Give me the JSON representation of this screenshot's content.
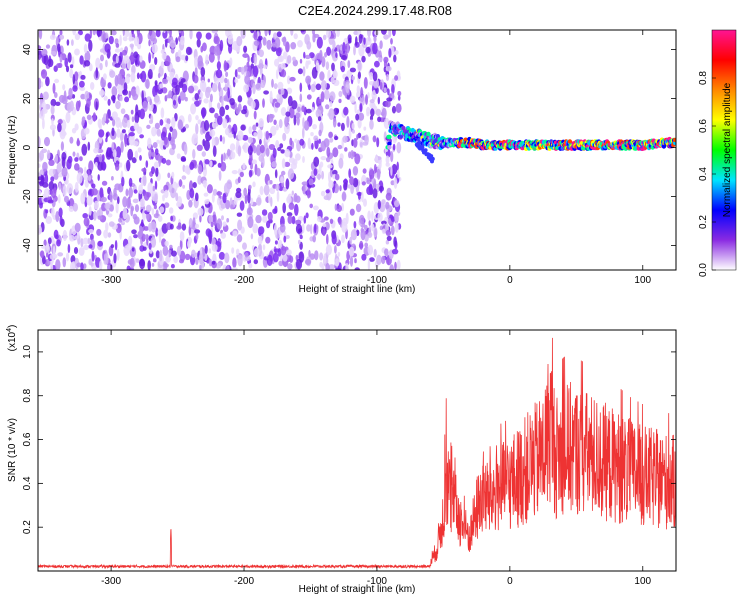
{
  "title": "C2E4.2024.299.17.48.R08",
  "colors": {
    "spectrogram_noise": "#7b2cf0",
    "snr_line": "#ee3333",
    "axis": "#000000"
  },
  "chart_data": [
    {
      "type": "heatmap",
      "name": "spectrogram",
      "xlabel": "Height of straight line (km)",
      "ylabel": "Frequency (Hz)",
      "xlim": [
        -355,
        125
      ],
      "ylim": [
        -50,
        48
      ],
      "xticks": [
        -300,
        -200,
        -100,
        0,
        100
      ],
      "yticks": [
        -40,
        -20,
        0,
        20,
        40
      ],
      "grid": false,
      "noise_region_x": [
        -355,
        -83
      ],
      "signal_track": {
        "x": [
          -90,
          -80,
          -70,
          -60,
          -50,
          -40,
          -30,
          -20,
          -10,
          0,
          20,
          40,
          60,
          80,
          100,
          120
        ],
        "y": [
          8,
          6,
          5,
          3,
          2,
          2,
          2,
          1,
          1,
          1,
          1,
          1,
          1,
          1,
          1,
          2
        ]
      },
      "colorbar": {
        "label": "Normalized spectral amplitude",
        "range": [
          0,
          1
        ],
        "ticks": [
          "0.0",
          "0.2",
          "0.4",
          "0.6",
          "0.8"
        ],
        "tick_values": [
          0.0,
          0.2,
          0.4,
          0.6,
          0.8
        ],
        "colors": [
          "#ffffff",
          "#8a2be2",
          "#0000ff",
          "#00e5ff",
          "#00ff00",
          "#ffff00",
          "#ff8800",
          "#ff0000",
          "#ff1493"
        ]
      }
    },
    {
      "type": "line",
      "name": "snr",
      "xlabel": "Height of straight line (km)",
      "ylabel": "SNR (10 * v/v)",
      "y_multiplier": "(x10",
      "y_multiplier_exp": "4",
      "y_multiplier_close": ")",
      "xlim": [
        -355,
        125
      ],
      "ylim": [
        0,
        1.1
      ],
      "xticks": [
        -300,
        -200,
        -100,
        0,
        100
      ],
      "yticks": [
        "0.2",
        "0.4",
        "0.6",
        "0.8",
        "1.0"
      ],
      "ytick_values": [
        0.2,
        0.4,
        0.6,
        0.8,
        1.0
      ],
      "grid": false,
      "series": [
        {
          "x": [
            -355,
            -300,
            -256,
            -255,
            -254,
            -200,
            -100,
            -60,
            -55,
            -50,
            -48,
            -45,
            -42,
            -40,
            -38,
            -35,
            -30,
            -25,
            -20,
            -15,
            -10,
            -5,
            0,
            5,
            10,
            15,
            20,
            25,
            28,
            30,
            32,
            35,
            40,
            45,
            50,
            60,
            70,
            80,
            90,
            100,
            110,
            125
          ],
          "y": [
            0.02,
            0.02,
            0.02,
            0.21,
            0.02,
            0.02,
            0.02,
            0.03,
            0.1,
            0.25,
            0.45,
            0.34,
            0.3,
            0.28,
            0.24,
            0.2,
            0.16,
            0.28,
            0.36,
            0.32,
            0.38,
            0.38,
            0.4,
            0.42,
            0.45,
            0.48,
            0.5,
            0.53,
            0.6,
            0.7,
            0.6,
            0.52,
            0.55,
            0.56,
            0.55,
            0.53,
            0.5,
            0.48,
            0.45,
            0.43,
            0.42,
            0.4
          ]
        }
      ]
    }
  ]
}
